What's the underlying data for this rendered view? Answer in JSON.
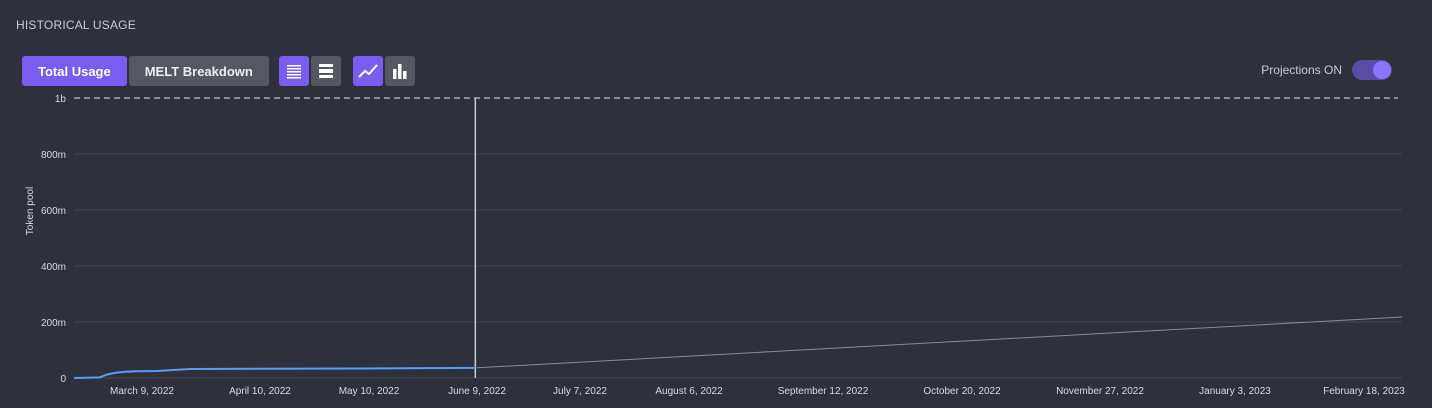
{
  "panel": {
    "title": "HISTORICAL USAGE"
  },
  "toolbar": {
    "total_usage_label": "Total Usage",
    "melt_breakdown_label": "MELT Breakdown",
    "icons": [
      "list-dense-icon",
      "list-compact-icon",
      "line-chart-icon",
      "bar-chart-icon"
    ]
  },
  "projections": {
    "label": "Projections ON",
    "enabled": true
  },
  "colors": {
    "accent": "#7b5cf0",
    "actual_line": "#5b9cf5",
    "projection_line": "#8a8c96",
    "grid": "#444653"
  },
  "chart_data": {
    "type": "line",
    "ylabel": "Token pool",
    "xlabel": "",
    "y_ticks": [
      "0",
      "200m",
      "400m",
      "600m",
      "800m",
      "1b"
    ],
    "ylim": [
      0,
      1000000000
    ],
    "x_ticks": [
      "March 9, 2022",
      "April 10, 2022",
      "May 10, 2022",
      "June 9, 2022",
      "July 7, 2022",
      "August 6, 2022",
      "September 12, 2022",
      "October 20, 2022",
      "November 27, 2022",
      "January 3, 2023",
      "February 18, 2023"
    ],
    "xlim": [
      "2022-02-19",
      "2023-02-18"
    ],
    "limit_line": 1000000000,
    "today": "2022-06-09",
    "series": [
      {
        "kind": "actual",
        "x": [
          "2022-02-19",
          "2022-02-26",
          "2022-02-28",
          "2022-03-02",
          "2022-03-05",
          "2022-03-08",
          "2022-03-14",
          "2022-03-17",
          "2022-03-20",
          "2022-03-23",
          "2022-04-10",
          "2022-05-10",
          "2022-06-09"
        ],
        "y": [
          0,
          2000000,
          12000000,
          18000000,
          22000000,
          24000000,
          25000000,
          28000000,
          30000000,
          32000000,
          33000000,
          34000000,
          36000000
        ]
      },
      {
        "kind": "projection",
        "x": [
          "2022-06-09",
          "2023-02-18"
        ],
        "y": [
          36000000,
          218000000
        ]
      }
    ]
  }
}
